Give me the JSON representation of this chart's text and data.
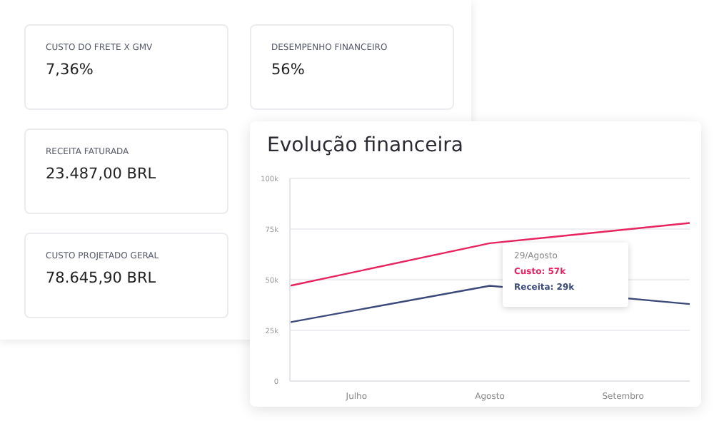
{
  "chart_data": [
    {
      "type": "other",
      "title": "CUSTO DO FRETE X GMV",
      "annotations": [
        "7,36%"
      ]
    },
    {
      "type": "other",
      "title": "DESEMPENHO FINANCEIRO",
      "annotations": [
        "56%"
      ]
    },
    {
      "type": "other",
      "title": "RECEITA FATURADA",
      "annotations": [
        "23.487,00 BRL"
      ]
    },
    {
      "type": "other",
      "title": "CUSTO PROJETADO GERAL",
      "annotations": [
        "78.645,90 BRL"
      ]
    },
    {
      "type": "line",
      "title": "Evolução financeira",
      "categories": [
        null,
        "Julho",
        null,
        "Agosto",
        null,
        "Setembro",
        null
      ],
      "series": [
        {
          "color": "#e8245f",
          "values": [
            47,
            null,
            null,
            68,
            null,
            null,
            78
          ]
        },
        {
          "color": "#3b4a7a",
          "values": [
            29,
            null,
            null,
            47,
            null,
            null,
            38
          ]
        }
      ],
      "ylim": [
        0,
        100
      ],
      "yticks": [
        {
          "value": 0,
          "label": "0"
        },
        {
          "value": 25,
          "label": "25k"
        },
        {
          "value": 50,
          "label": "50k"
        },
        {
          "value": 75,
          "label": "75k"
        },
        {
          "value": 100,
          "label": "100k"
        }
      ],
      "grid": "y",
      "marker": "none",
      "annotations": [
        "29/Agosto",
        "Custo: 57k",
        "Receita: 29k"
      ]
    }
  ]
}
